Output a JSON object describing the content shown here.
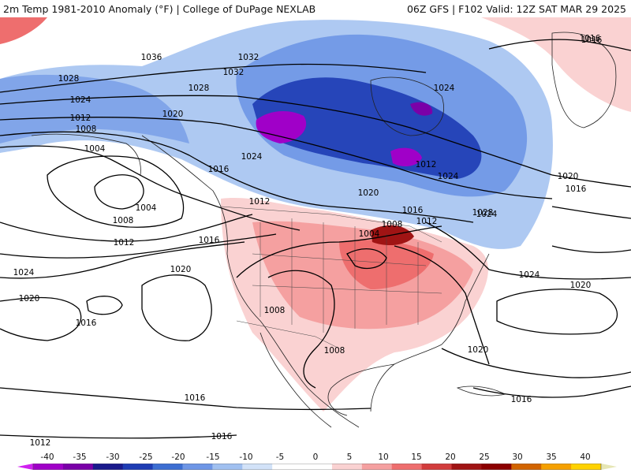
{
  "header": {
    "title_left": "2m Temp 1981-2010 Anomaly (°F) | College of DuPage NEXLAB",
    "title_right": "06Z GFS | F102 Valid: 12Z SAT MAR 29 2025"
  },
  "isobar_labels": [
    "1036",
    "1032",
    "1032",
    "1028",
    "1028",
    "1024",
    "1024",
    "1020",
    "1012",
    "1008",
    "1004",
    "1004",
    "1008",
    "1012",
    "1016",
    "1024",
    "1020",
    "1016",
    "1020",
    "1024",
    "1016",
    "1016",
    "1012",
    "1012",
    "1008",
    "1004",
    "1008",
    "1012",
    "1016",
    "1020",
    "1024",
    "1028",
    "1016",
    "1020",
    "1024",
    "1008",
    "1020",
    "1016",
    "1012",
    "1016",
    "1016",
    "1024",
    "1020",
    "1016"
  ],
  "legend": {
    "ticks": [
      "-40",
      "-35",
      "-30",
      "-25",
      "-20",
      "-15",
      "-10",
      "-5",
      "0",
      "5",
      "10",
      "15",
      "20",
      "25",
      "30",
      "35",
      "40"
    ],
    "colors": [
      "#d020f0",
      "#a000c8",
      "#7a00a8",
      "#1a1a8c",
      "#1e3cb4",
      "#3c6ed2",
      "#6e96e6",
      "#a0c0f0",
      "#d2e2f8",
      "#ffffff",
      "#ffffff",
      "#fad2d2",
      "#f5a0a0",
      "#ee6e6e",
      "#d23c3c",
      "#a01414",
      "#8c0000",
      "#d26400",
      "#f5a000",
      "#ffd200",
      "#e6e6b4"
    ]
  }
}
